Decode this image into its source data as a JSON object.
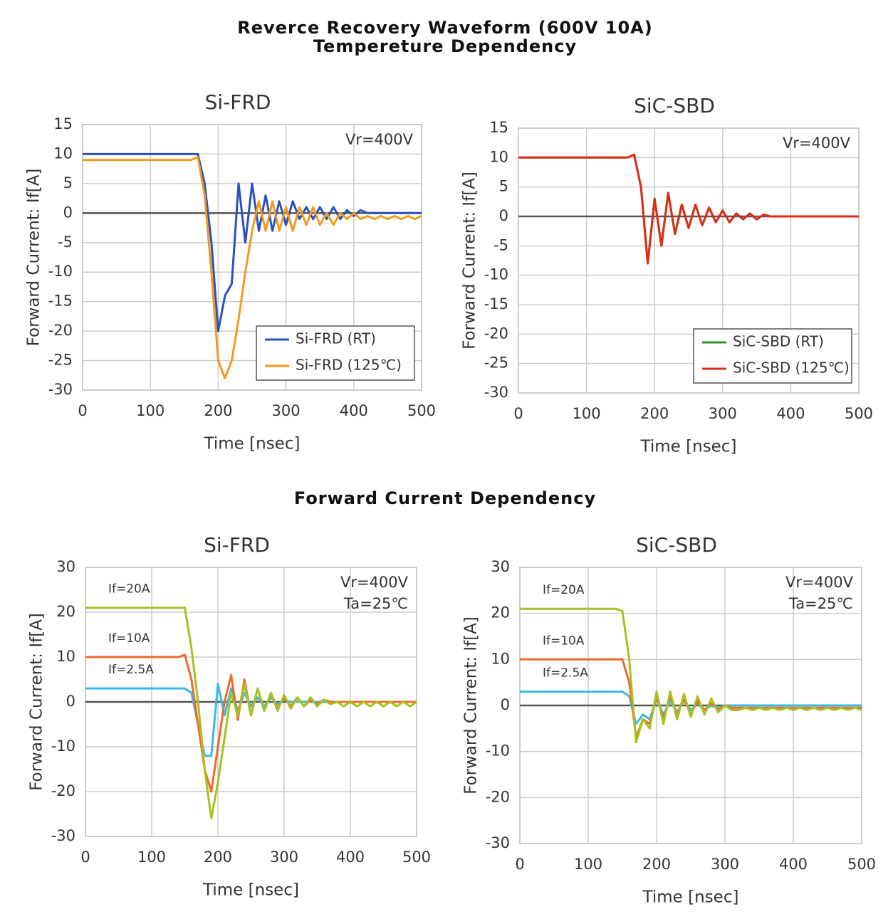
{
  "sections": {
    "title1": "Reverce Recovery Waveform (600V 10A)",
    "title2": "Tempereture Dependency",
    "title3": "Forward Current Dependency"
  },
  "chart_data": [
    {
      "type": "line",
      "title": "Si-FRD",
      "x_label": "Time [nsec]",
      "y_label": "Forward Current: If[A]",
      "annotations": [
        "Vr=400V"
      ],
      "legend": "lower right",
      "grid": true,
      "xlim": [
        0,
        500
      ],
      "xticks": [
        0,
        100,
        200,
        300,
        400,
        500
      ],
      "ylim": [
        -30,
        15
      ],
      "yticks": [
        -30,
        -25,
        -20,
        -15,
        -10,
        -5,
        0,
        5,
        10,
        15
      ],
      "x": [
        0,
        10,
        20,
        30,
        40,
        50,
        60,
        70,
        80,
        90,
        100,
        110,
        120,
        130,
        140,
        150,
        160,
        170,
        180,
        190,
        200,
        210,
        220,
        230,
        240,
        250,
        260,
        270,
        280,
        290,
        300,
        310,
        320,
        330,
        340,
        350,
        360,
        370,
        380,
        390,
        400,
        410,
        420,
        430,
        440,
        450,
        460,
        470,
        480,
        490,
        500
      ],
      "series": [
        {
          "name": "Si-FRD (RT)",
          "color": "#2a4fbf",
          "values": [
            10,
            10,
            10,
            10,
            10,
            10,
            10,
            10,
            10,
            10,
            10,
            10,
            10,
            10,
            10,
            10,
            10,
            10,
            5,
            -5,
            -20,
            -14,
            -12,
            5,
            -5,
            5,
            -3,
            3,
            -3,
            2,
            -2,
            2,
            -1,
            1,
            -1,
            1,
            -1,
            1,
            -1,
            0.5,
            -0.5,
            0.5,
            0,
            0,
            0,
            0,
            0,
            0,
            0,
            0,
            0
          ]
        },
        {
          "name": "Si-FRD (125℃)",
          "color": "#f39a1e",
          "values": [
            9,
            9,
            9,
            9,
            9,
            9,
            9,
            9,
            9,
            9,
            9,
            9,
            9,
            9,
            9,
            9,
            9,
            9.5,
            3,
            -10,
            -25,
            -28,
            -25,
            -18,
            -10,
            -3,
            2,
            -3,
            2,
            -3,
            1,
            -3,
            1,
            -2,
            1,
            -2,
            0,
            -2,
            0,
            -1,
            0,
            -1,
            -0.5,
            -1,
            -0.5,
            -1,
            -0.5,
            -1,
            -0.5,
            -1,
            -0.5
          ]
        }
      ]
    },
    {
      "type": "line",
      "title": "SiC-SBD",
      "x_label": "Time [nsec]",
      "y_label": "Forward Current: If[A]",
      "annotations": [
        "Vr=400V"
      ],
      "legend": "lower right",
      "grid": true,
      "xlim": [
        0,
        500
      ],
      "xticks": [
        0,
        100,
        200,
        300,
        400,
        500
      ],
      "ylim": [
        -30,
        15
      ],
      "yticks": [
        -30,
        -25,
        -20,
        -15,
        -10,
        -5,
        0,
        5,
        10,
        15
      ],
      "x": [
        0,
        10,
        20,
        30,
        40,
        50,
        60,
        70,
        80,
        90,
        100,
        110,
        120,
        130,
        140,
        150,
        160,
        170,
        180,
        190,
        200,
        210,
        220,
        230,
        240,
        250,
        260,
        270,
        280,
        290,
        300,
        310,
        320,
        330,
        340,
        350,
        360,
        370,
        380,
        390,
        400,
        410,
        420,
        430,
        440,
        450,
        460,
        470,
        480,
        490,
        500
      ],
      "series": [
        {
          "name": "SiC-SBD (RT)",
          "color": "#2a9a2a",
          "values": [
            10,
            10,
            10,
            10,
            10,
            10,
            10,
            10,
            10,
            10,
            10,
            10,
            10,
            10,
            10,
            10,
            10,
            10.5,
            5,
            -8,
            3,
            -5,
            4,
            -3,
            2,
            -2,
            2,
            -1.5,
            1.5,
            -1,
            1,
            -1,
            0.5,
            -0.5,
            0.5,
            -0.5,
            0.3,
            0,
            0,
            0,
            0,
            0,
            0,
            0,
            0,
            0,
            0,
            0,
            0,
            0,
            0
          ]
        },
        {
          "name": "SiC-SBD (125℃)",
          "color": "#e02a1a",
          "values": [
            10,
            10,
            10,
            10,
            10,
            10,
            10,
            10,
            10,
            10,
            10,
            10,
            10,
            10,
            10,
            10,
            10,
            10.5,
            5,
            -8,
            3,
            -5,
            4,
            -3,
            2,
            -2,
            2,
            -1.5,
            1.5,
            -1,
            1,
            -1,
            0.5,
            -0.5,
            0.5,
            -0.5,
            0.3,
            0,
            0,
            0,
            0,
            0,
            0,
            0,
            0,
            0,
            0,
            0,
            0,
            0,
            0
          ]
        }
      ]
    },
    {
      "type": "line",
      "title": "Si-FRD",
      "x_label": "Time [nsec]",
      "y_label": "Forward Current: If[A]",
      "annotations": [
        "Vr=400V",
        "Ta=25℃"
      ],
      "legend": "inline",
      "grid": true,
      "xlim": [
        0,
        500
      ],
      "xticks": [
        0,
        100,
        200,
        300,
        400,
        500
      ],
      "ylim": [
        -30,
        30
      ],
      "yticks": [
        -30,
        -20,
        -10,
        0,
        10,
        20,
        30
      ],
      "x": [
        0,
        10,
        20,
        30,
        40,
        50,
        60,
        70,
        80,
        90,
        100,
        110,
        120,
        130,
        140,
        150,
        160,
        170,
        180,
        190,
        200,
        210,
        220,
        230,
        240,
        250,
        260,
        270,
        280,
        290,
        300,
        310,
        320,
        330,
        340,
        350,
        360,
        370,
        380,
        390,
        400,
        410,
        420,
        430,
        440,
        450,
        460,
        470,
        480,
        490,
        500
      ],
      "series": [
        {
          "name": "If=2.5A",
          "color": "#3ab8e8",
          "values": [
            3,
            3,
            3,
            3,
            3,
            3,
            3,
            3,
            3,
            3,
            3,
            3,
            3,
            3,
            3,
            3,
            2,
            -5,
            -12,
            -12,
            4,
            -3,
            3,
            -2,
            2,
            -1,
            1,
            -1,
            1,
            -0.5,
            0.5,
            0,
            0,
            0,
            0,
            0,
            0,
            0,
            0,
            0,
            0,
            0,
            0,
            0,
            0,
            0,
            0,
            0,
            0,
            0,
            0
          ]
        },
        {
          "name": "If=10A",
          "color": "#f06a2a",
          "values": [
            10,
            10,
            10,
            10,
            10,
            10,
            10,
            10,
            10,
            10,
            10,
            10,
            10,
            10,
            10,
            10.5,
            5,
            -5,
            -15,
            -20,
            -10,
            0,
            6,
            -4,
            5,
            -3,
            3,
            -2,
            2,
            -1.5,
            1,
            -1,
            1,
            -1,
            0.5,
            -0.5,
            0.5,
            0,
            0,
            0,
            0,
            0,
            0,
            0,
            0,
            0,
            0,
            0,
            0,
            0,
            0
          ]
        },
        {
          "name": "If=20A",
          "color": "#a8c020",
          "values": [
            21,
            21,
            21,
            21,
            21,
            21,
            21,
            21,
            21,
            21,
            21,
            21,
            21,
            21,
            21,
            21,
            12,
            0,
            -15,
            -26,
            -18,
            -8,
            2,
            -3,
            4,
            -3,
            3,
            -2,
            2,
            -2,
            1.5,
            -1.5,
            1,
            -1,
            1,
            -1,
            0.5,
            -0.5,
            0,
            -1,
            0,
            -1,
            0,
            -1,
            0,
            -1,
            0,
            -1,
            0,
            -1,
            0
          ]
        }
      ]
    },
    {
      "type": "line",
      "title": "SiC-SBD",
      "x_label": "Time [nsec]",
      "y_label": "Forward Current: If[A]",
      "annotations": [
        "Vr=400V",
        "Ta=25℃"
      ],
      "legend": "inline",
      "grid": true,
      "xlim": [
        0,
        500
      ],
      "xticks": [
        0,
        100,
        200,
        300,
        400,
        500
      ],
      "ylim": [
        -30,
        30
      ],
      "yticks": [
        -30,
        -20,
        -10,
        0,
        10,
        20,
        30
      ],
      "x": [
        0,
        10,
        20,
        30,
        40,
        50,
        60,
        70,
        80,
        90,
        100,
        110,
        120,
        130,
        140,
        150,
        160,
        170,
        180,
        190,
        200,
        210,
        220,
        230,
        240,
        250,
        260,
        270,
        280,
        290,
        300,
        310,
        320,
        330,
        340,
        350,
        360,
        370,
        380,
        390,
        400,
        410,
        420,
        430,
        440,
        450,
        460,
        470,
        480,
        490,
        500
      ],
      "series": [
        {
          "name": "If=2.5A",
          "color": "#3ab8e8",
          "values": [
            3,
            3,
            3,
            3,
            3,
            3,
            3,
            3,
            3,
            3,
            3,
            3,
            3,
            3,
            3,
            3,
            2,
            -4,
            -2,
            -3,
            1.5,
            -2,
            1,
            -1.5,
            1,
            -1,
            0.5,
            -1,
            0,
            -0.5,
            0,
            0,
            0,
            0,
            0,
            0,
            0,
            0,
            0,
            0,
            0,
            0,
            0,
            0,
            0,
            0,
            0,
            0,
            0,
            0,
            0
          ]
        },
        {
          "name": "If=10A",
          "color": "#f06a2a",
          "values": [
            10,
            10,
            10,
            10,
            10,
            10,
            10,
            10,
            10,
            10,
            10,
            10,
            10,
            10,
            10,
            10,
            5,
            -7,
            -3,
            -4,
            2,
            -3,
            2,
            -2,
            1.5,
            -2,
            1,
            -1,
            0.5,
            -1,
            0,
            -0.5,
            -0.5,
            -0.5,
            -0.5,
            -0.5,
            -0.5,
            -0.5,
            -0.5,
            -0.5,
            -0.5,
            -0.5,
            -0.5,
            -0.5,
            -0.5,
            -0.5,
            -0.5,
            -0.5,
            -0.5,
            -0.5,
            -0.5
          ]
        },
        {
          "name": "If=20A",
          "color": "#a8c020",
          "values": [
            21,
            21,
            21,
            21,
            21,
            21,
            21,
            21,
            21,
            21,
            21,
            21,
            21,
            21,
            21,
            20.5,
            10,
            -8,
            -3,
            -5,
            3,
            -4,
            3,
            -3,
            2.5,
            -2.5,
            2,
            -2,
            1.5,
            -1.5,
            0,
            -1,
            -1,
            -0.5,
            -1,
            -0.5,
            -1,
            -0.5,
            -1,
            -0.5,
            -1,
            -0.5,
            -1,
            -0.5,
            -1,
            -0.5,
            -1,
            -0.5,
            -1,
            -0.5,
            -1
          ]
        }
      ]
    }
  ]
}
